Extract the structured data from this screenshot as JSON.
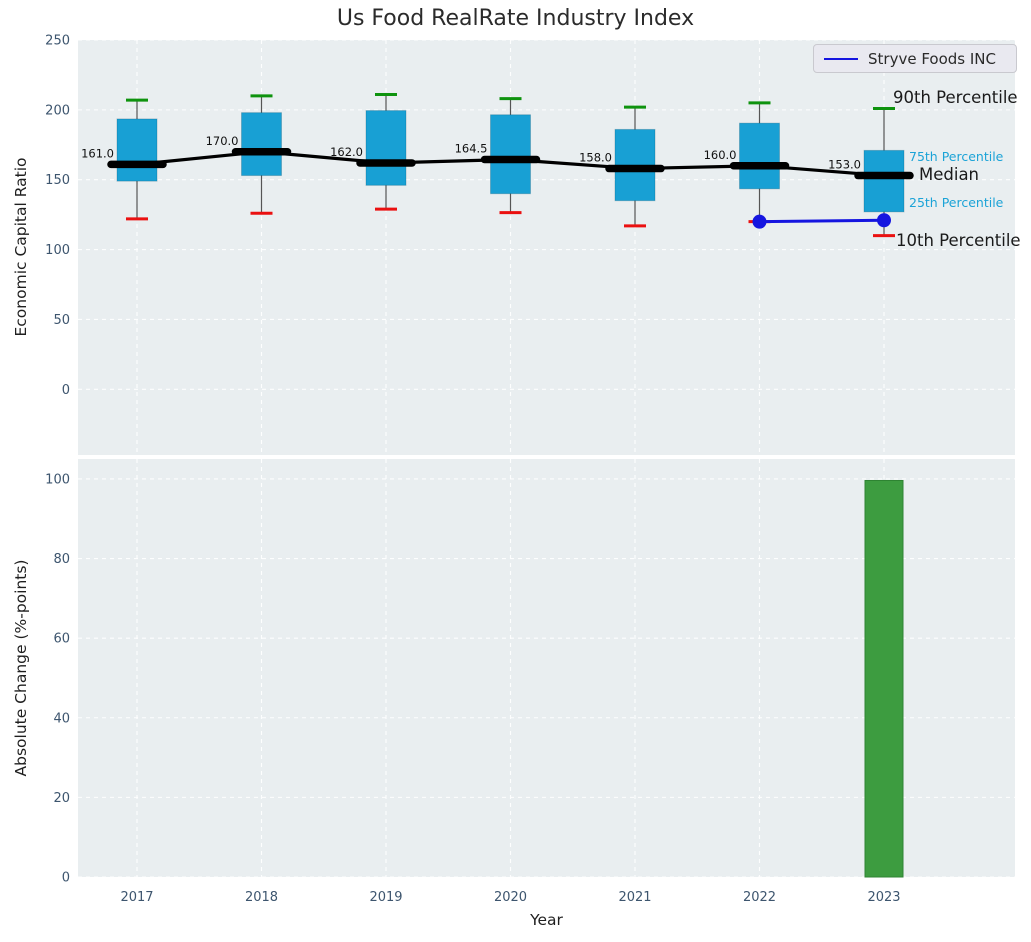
{
  "figure": {
    "background": "#ffffff",
    "axes_background": "#e9eef0",
    "grid_color": "#ffffff",
    "tick_color": "#3d556e",
    "text_color": "#262626"
  },
  "chart_data": [
    {
      "type": "boxplot",
      "title": "Us Food RealRate Industry Index",
      "ylabel": "Economic Capital Ratio",
      "xlabel": "Year",
      "categories": [
        "2017",
        "2018",
        "2019",
        "2020",
        "2021",
        "2022",
        "2023"
      ],
      "yticks": [
        0,
        50,
        100,
        150,
        200,
        250
      ],
      "ylim": [
        -47,
        250
      ],
      "grid": true,
      "legend_label": "Stryve Foods INC",
      "legend_position": "upper right",
      "annotations": {
        "p90": "90th Percentile",
        "p75": "75th Percentile",
        "median": "Median",
        "p25": "25th Percentile",
        "p10": "10th Percentile"
      },
      "series": [
        {
          "name": "90th Percentile",
          "values": [
            207,
            210,
            211,
            208,
            202,
            205,
            201
          ],
          "color": "#0e930e"
        },
        {
          "name": "75th Percentile",
          "values": [
            193.5,
            198,
            199.5,
            196.5,
            186,
            190.5,
            171
          ],
          "color": "#18a0d4"
        },
        {
          "name": "Median",
          "values": [
            161.0,
            170.0,
            162.0,
            164.5,
            158.0,
            160.0,
            153.0
          ],
          "color": "#000000"
        },
        {
          "name": "25th Percentile",
          "values": [
            149,
            153,
            146,
            140,
            135,
            143.5,
            127
          ],
          "color": "#18a0d4"
        },
        {
          "name": "10th Percentile",
          "values": [
            122,
            126,
            129,
            126.5,
            117,
            120,
            110
          ],
          "color": "#ea1010"
        },
        {
          "name": "Stryve Foods INC",
          "x": [
            "2022",
            "2023"
          ],
          "values": [
            120,
            121
          ],
          "color": "#1515e0"
        }
      ],
      "median_labels": [
        "161.0",
        "170.0",
        "162.0",
        "164.5",
        "158.0",
        "160.0",
        "153.0"
      ],
      "box_color": "#18a0d4",
      "whisker_color": "#555555",
      "median_line_color": "#000000"
    },
    {
      "type": "bar",
      "title": "",
      "ylabel": "Absolute Change (%-points)",
      "xlabel": "Year",
      "categories": [
        "2017",
        "2018",
        "2019",
        "2020",
        "2021",
        "2022",
        "2023"
      ],
      "values": [
        null,
        null,
        null,
        null,
        null,
        null,
        99.6
      ],
      "yticks": [
        0,
        20,
        40,
        60,
        80,
        100
      ],
      "ylim": [
        0,
        105
      ],
      "grid": true,
      "bar_color": "#3d9c40",
      "bar_edge_color": "#2f8433"
    }
  ]
}
